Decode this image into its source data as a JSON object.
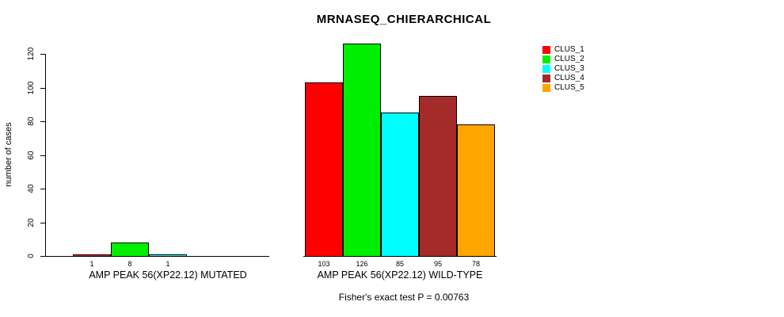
{
  "chart_data": {
    "type": "bar",
    "title": "MRNASEQ_CHIERARCHICAL",
    "ylabel": "number of cases",
    "xlabel": "",
    "ylim": [
      0,
      120
    ],
    "yticks": [
      0,
      20,
      40,
      60,
      80,
      100,
      120
    ],
    "grid": false,
    "legend_position": "top-right",
    "legend": [
      "CLUS_1",
      "CLUS_2",
      "CLUS_3",
      "CLUS_4",
      "CLUS_5"
    ],
    "colors": [
      "#ff0000",
      "#00ee00",
      "#00ffff",
      "#a52a2a",
      "#ffa500"
    ],
    "groups": [
      {
        "label": "AMP PEAK 56(XP22.12) MUTATED",
        "values": [
          1,
          8,
          1,
          0,
          0
        ],
        "bar_labels": [
          "1",
          "8",
          "1",
          "",
          ""
        ]
      },
      {
        "label": "AMP PEAK 56(XP22.12) WILD-TYPE",
        "values": [
          103,
          126,
          85,
          95,
          78
        ],
        "bar_labels": [
          "103",
          "126",
          "85",
          "95",
          "78"
        ]
      }
    ],
    "footnote": "Fisher's exact test P = 0.00763"
  }
}
